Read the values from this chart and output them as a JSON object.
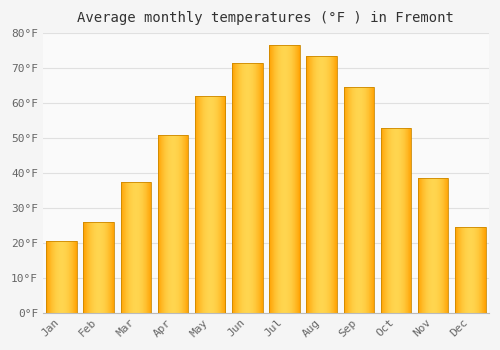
{
  "title": "Average monthly temperatures (°F ) in Fremont",
  "months": [
    "Jan",
    "Feb",
    "Mar",
    "Apr",
    "May",
    "Jun",
    "Jul",
    "Aug",
    "Sep",
    "Oct",
    "Nov",
    "Dec"
  ],
  "values": [
    20.5,
    26.0,
    37.5,
    51.0,
    62.0,
    71.5,
    76.5,
    73.5,
    64.5,
    53.0,
    38.5,
    24.5
  ],
  "bar_color_center": "#FFD54F",
  "bar_color_edge": "#FFA000",
  "background_color": "#F5F5F5",
  "plot_bg_color": "#FAFAFA",
  "grid_color": "#E0E0E0",
  "ylim": [
    0,
    80
  ],
  "yticks": [
    0,
    10,
    20,
    30,
    40,
    50,
    60,
    70,
    80
  ],
  "title_fontsize": 10,
  "tick_fontsize": 8,
  "tick_color": "#666666",
  "bar_width": 0.82
}
